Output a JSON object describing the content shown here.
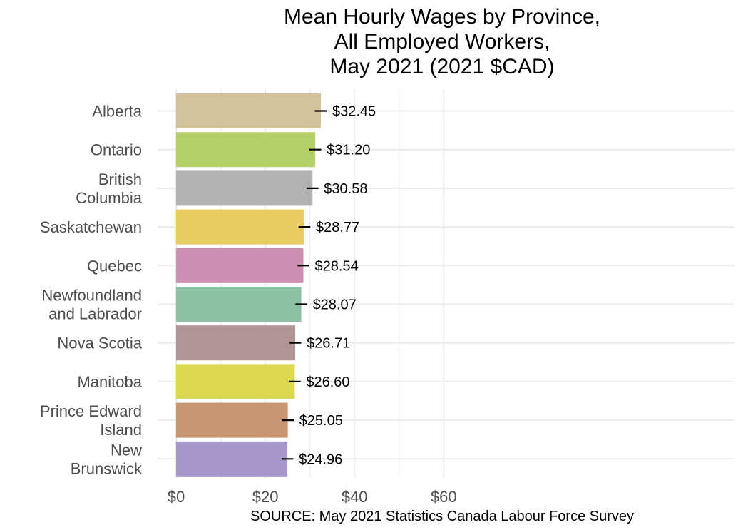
{
  "chart_data": {
    "type": "bar",
    "orientation": "horizontal",
    "title": [
      "Mean Hourly Wages by Province,",
      "All Employed Workers,",
      "May 2021 (2021 $CAD)"
    ],
    "xlabel": "",
    "ylabel": "",
    "xlim": [
      0,
      63
    ],
    "x_ticks": [
      0,
      20,
      40,
      60
    ],
    "x_tick_labels": [
      "$0",
      "$20",
      "$40",
      "$60"
    ],
    "grid": true,
    "legend": "none",
    "source": "SOURCE: May 2021 Statistics Canada Labour Force Survey",
    "categories": [
      [
        "Alberta"
      ],
      [
        "Ontario"
      ],
      [
        "British",
        "Columbia"
      ],
      [
        "Saskatchewan"
      ],
      [
        "Quebec"
      ],
      [
        "Newfoundland",
        "and Labrador"
      ],
      [
        "Nova Scotia"
      ],
      [
        "Manitoba"
      ],
      [
        "Prince Edward",
        "Island"
      ],
      [
        "New",
        "Brunswick"
      ]
    ],
    "values": [
      32.45,
      31.2,
      30.58,
      28.77,
      28.54,
      28.07,
      26.71,
      26.6,
      25.05,
      24.96
    ],
    "value_labels": [
      "$32.45",
      "$31.20",
      "$30.58",
      "$28.77",
      "$28.54",
      "$28.07",
      "$26.71",
      "$26.60",
      "$25.05",
      "$24.96"
    ],
    "error_half_width": [
      0.6,
      0.6,
      0.6,
      0.6,
      0.6,
      0.6,
      0.6,
      0.6,
      0.6,
      0.6
    ],
    "colors": [
      "#d2c199",
      "#b5d06b",
      "#b3b3b3",
      "#e8cc62",
      "#cc8fb1",
      "#8bc2a4",
      "#b09596",
      "#dbd74f",
      "#c99673",
      "#a597c8"
    ]
  }
}
